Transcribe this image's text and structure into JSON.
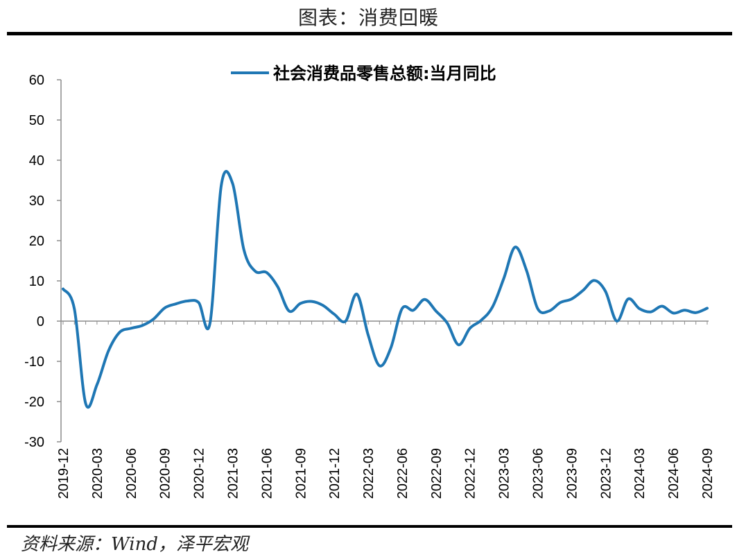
{
  "title": "图表：消费回暖",
  "source": "资料来源：Wind，泽平宏观",
  "colors": {
    "series": "#1f77b4",
    "axis": "#8c8c8c",
    "rule": "#000000"
  },
  "chart_data": {
    "type": "line",
    "title": "",
    "xlabel": "",
    "ylabel": "",
    "ylim": [
      -30,
      60
    ],
    "yticks": [
      60,
      50,
      40,
      30,
      20,
      10,
      0,
      -10,
      -20,
      -30
    ],
    "grid": false,
    "legend_position": "top-center",
    "xtick_labels": [
      "2019-12",
      "2020-03",
      "2020-06",
      "2020-09",
      "2020-12",
      "2021-03",
      "2021-06",
      "2021-09",
      "2021-12",
      "2022-03",
      "2022-06",
      "2022-09",
      "2022-12",
      "2023-03",
      "2023-06",
      "2023-09",
      "2023-12",
      "2024-03",
      "2024-06",
      "2024-09"
    ],
    "x": [
      "2019-12",
      "2020-01",
      "2020-02",
      "2020-03",
      "2020-04",
      "2020-05",
      "2020-06",
      "2020-07",
      "2020-08",
      "2020-09",
      "2020-10",
      "2020-11",
      "2020-12",
      "2021-01",
      "2021-02",
      "2021-03",
      "2021-04",
      "2021-05",
      "2021-06",
      "2021-07",
      "2021-08",
      "2021-09",
      "2021-10",
      "2021-11",
      "2021-12",
      "2022-01",
      "2022-02",
      "2022-03",
      "2022-04",
      "2022-05",
      "2022-06",
      "2022-07",
      "2022-08",
      "2022-09",
      "2022-10",
      "2022-11",
      "2022-12",
      "2023-01",
      "2023-02",
      "2023-03",
      "2023-04",
      "2023-05",
      "2023-06",
      "2023-07",
      "2023-08",
      "2023-09",
      "2023-10",
      "2023-11",
      "2023-12",
      "2024-01",
      "2024-02",
      "2024-03",
      "2024-04",
      "2024-05",
      "2024-06",
      "2024-07",
      "2024-08",
      "2024-09"
    ],
    "series": [
      {
        "name": "社会消费品零售总额:当月同比",
        "values": [
          8.0,
          3.0,
          -20.5,
          -15.8,
          -7.5,
          -2.8,
          -1.8,
          -1.1,
          0.5,
          3.3,
          4.3,
          5.0,
          4.6,
          -0.5,
          33.8,
          34.2,
          17.7,
          12.4,
          12.1,
          8.5,
          2.5,
          4.4,
          4.9,
          3.9,
          1.7,
          0.0,
          6.7,
          -3.5,
          -11.1,
          -6.7,
          3.1,
          2.7,
          5.4,
          2.5,
          -0.5,
          -5.9,
          -1.8,
          0.2,
          3.5,
          10.6,
          18.4,
          12.7,
          3.1,
          2.5,
          4.6,
          5.5,
          7.6,
          10.1,
          7.4,
          0.0,
          5.5,
          3.1,
          2.3,
          3.7,
          2.0,
          2.7,
          2.1,
          3.2
        ]
      }
    ]
  }
}
